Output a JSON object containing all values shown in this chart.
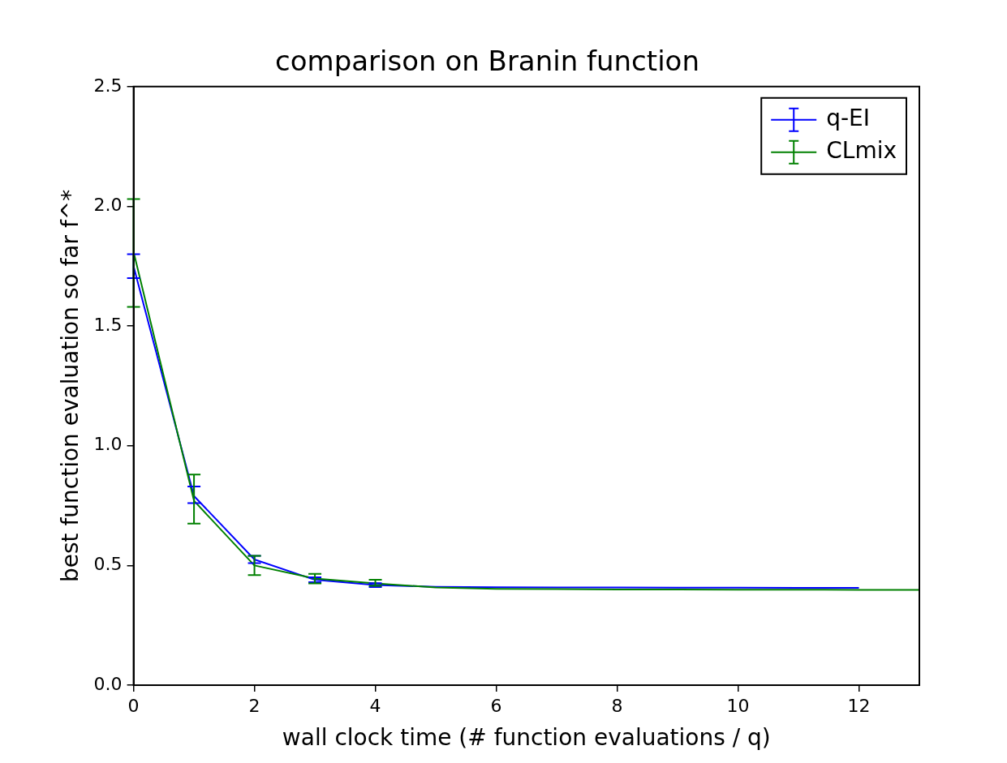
{
  "chart_data": {
    "type": "line",
    "title": "comparison on Branin function",
    "xlabel": "wall clock time (# function evaluations / q)",
    "ylabel": "best function evaluation so far f^*",
    "xlim": [
      0,
      13
    ],
    "xticks": [
      0,
      2,
      4,
      6,
      8,
      10,
      12
    ],
    "ylim": [
      0,
      2.5
    ],
    "yticks": [
      {
        "value": 0,
        "label": "0.0"
      },
      0.5,
      {
        "value": 1,
        "label": "1.0"
      },
      1.5,
      {
        "value": 2,
        "label": "2.0"
      },
      2.5
    ],
    "grid": false,
    "legend": "top right",
    "marker": "none",
    "line_style": "solid",
    "series": [
      {
        "name": "q-EI",
        "color": "#0000ff",
        "x": [
          0,
          1,
          2,
          3,
          4,
          5,
          6,
          7,
          8,
          9,
          10,
          11,
          12
        ],
        "values": [
          1.75,
          0.79,
          0.525,
          0.44,
          0.418,
          0.411,
          0.409,
          0.408,
          0.408,
          0.407,
          0.407,
          0.406,
          0.406
        ],
        "errors": [
          [
            1.7,
            1.8
          ],
          [
            0.76,
            0.83
          ],
          [
            0.51,
            0.54
          ],
          [
            0.43,
            0.45
          ],
          [
            0.41,
            0.426
          ],
          null,
          null,
          null,
          null,
          null,
          null,
          null,
          null
        ]
      },
      {
        "name": "CLmix",
        "color": "#008000",
        "x": [
          0,
          1,
          2,
          3,
          4,
          5,
          6,
          7,
          8,
          9,
          10,
          11,
          12,
          13
        ],
        "values": [
          1.81,
          0.77,
          0.5,
          0.445,
          0.425,
          0.408,
          0.402,
          0.401,
          0.4,
          0.4,
          0.399,
          0.399,
          0.398,
          0.398
        ],
        "errors": [
          [
            1.58,
            2.03
          ],
          [
            0.675,
            0.88
          ],
          [
            0.46,
            0.54
          ],
          [
            0.425,
            0.465
          ],
          [
            0.415,
            0.44
          ],
          null,
          null,
          null,
          null,
          null,
          null,
          null,
          null,
          null
        ]
      }
    ]
  }
}
